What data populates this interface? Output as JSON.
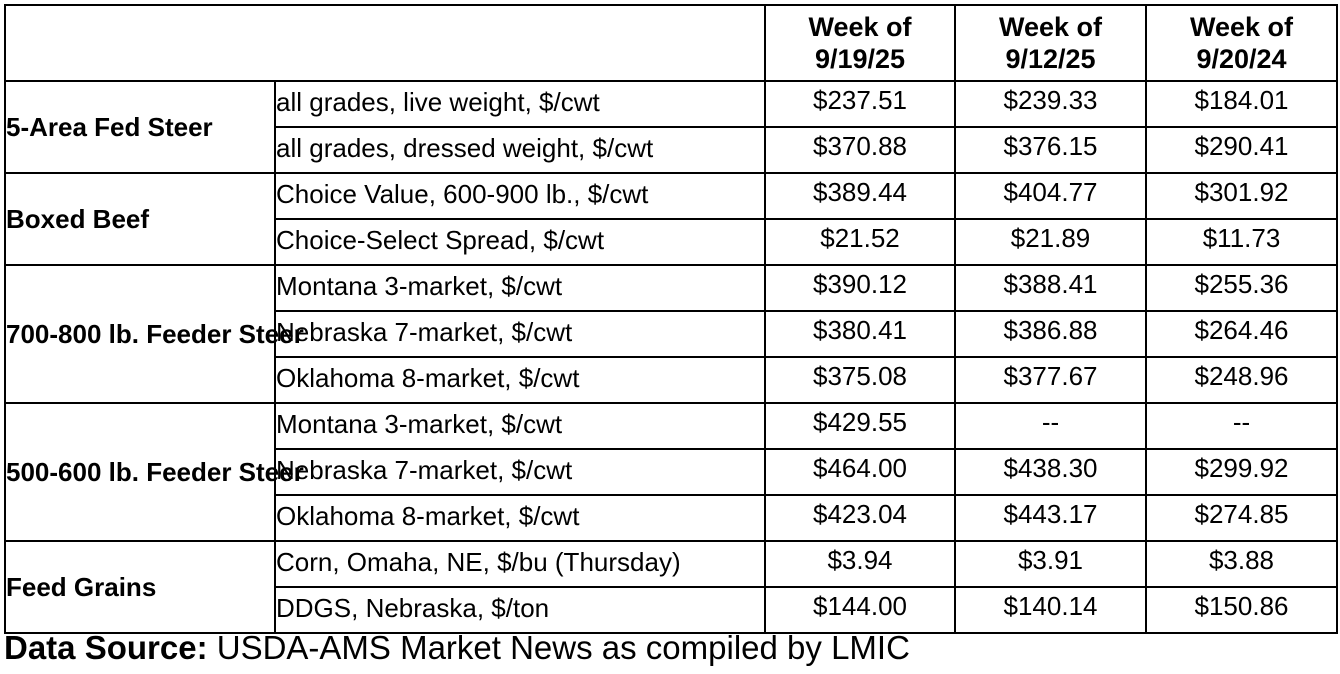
{
  "columns": [
    {
      "line1": "Week of",
      "line2": "9/19/25"
    },
    {
      "line1": "Week of",
      "line2": "9/12/25"
    },
    {
      "line1": "Week of",
      "line2": "9/20/24"
    }
  ],
  "groups": [
    {
      "name": "5-Area Fed Steer",
      "rows": [
        {
          "label": "all grades, live weight, $/cwt",
          "values": [
            "$237.51",
            "$239.33",
            "$184.01"
          ]
        },
        {
          "label": "all grades, dressed weight, $/cwt",
          "values": [
            "$370.88",
            "$376.15",
            "$290.41"
          ]
        }
      ]
    },
    {
      "name": "Boxed Beef",
      "rows": [
        {
          "label": "Choice Value, 600-900 lb., $/cwt",
          "values": [
            "$389.44",
            "$404.77",
            "$301.92"
          ]
        },
        {
          "label": "Choice-Select Spread, $/cwt",
          "values": [
            "$21.52",
            "$21.89",
            "$11.73"
          ]
        }
      ]
    },
    {
      "name": "700-800 lb. Feeder Steer",
      "rows": [
        {
          "label": "Montana 3-market, $/cwt",
          "values": [
            "$390.12",
            "$388.41",
            "$255.36"
          ]
        },
        {
          "label": "Nebraska 7-market, $/cwt",
          "values": [
            "$380.41",
            "$386.88",
            "$264.46"
          ]
        },
        {
          "label": "Oklahoma 8-market, $/cwt",
          "values": [
            "$375.08",
            "$377.67",
            "$248.96"
          ]
        }
      ]
    },
    {
      "name": "500-600 lb. Feeder Steer",
      "rows": [
        {
          "label": "Montana 3-market, $/cwt",
          "values": [
            "$429.55",
            "--",
            "--"
          ]
        },
        {
          "label": "Nebraska 7-market, $/cwt",
          "values": [
            "$464.00",
            "$438.30",
            "$299.92"
          ]
        },
        {
          "label": "Oklahoma 8-market, $/cwt",
          "values": [
            "$423.04",
            "$443.17",
            "$274.85"
          ]
        }
      ]
    },
    {
      "name": "Feed Grains",
      "rows": [
        {
          "label": "Corn, Omaha, NE, $/bu (Thursday)",
          "values": [
            "$3.94",
            "$3.91",
            "$3.88"
          ]
        },
        {
          "label": "DDGS, Nebraska, $/ton",
          "values": [
            "$144.00",
            "$140.14",
            "$150.86"
          ]
        }
      ]
    }
  ],
  "source": {
    "label": "Data Source:",
    "text": " USDA-AMS Market News as compiled by LMIC"
  }
}
